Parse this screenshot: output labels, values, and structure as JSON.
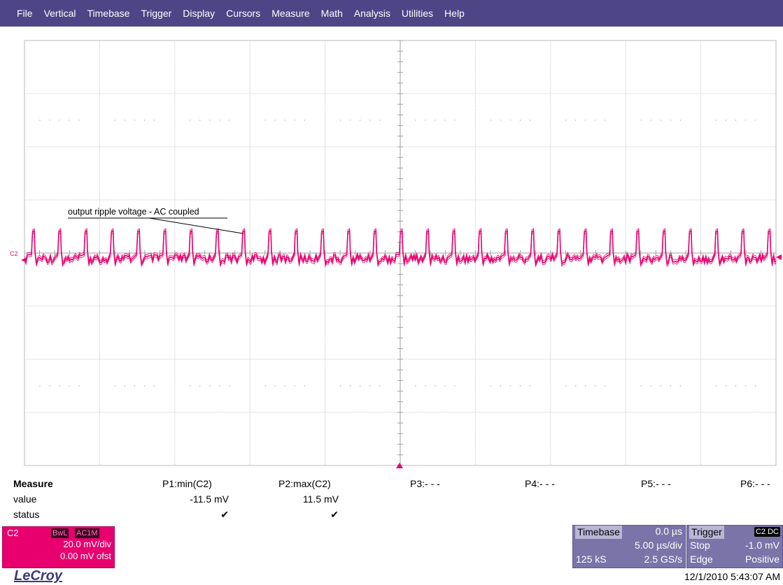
{
  "menu": [
    "File",
    "Vertical",
    "Timebase",
    "Trigger",
    "Display",
    "Cursors",
    "Measure",
    "Math",
    "Analysis",
    "Utilities",
    "Help"
  ],
  "colors": {
    "menubar": "#4d4586",
    "trace": "#e8006e",
    "panel": "#7a74a8"
  },
  "waveform": {
    "channel_marker": "C2",
    "annotation": "output ripple voltage - AC coupled"
  },
  "measure": {
    "title": "Measure",
    "row_labels": {
      "value": "value",
      "status": "status"
    },
    "params": [
      {
        "label": "P1:min(C2)",
        "value": "-11.5 mV",
        "status": "✔"
      },
      {
        "label": "P2:max(C2)",
        "value": "11.5 mV",
        "status": "✔"
      },
      {
        "label": "P3:- - -",
        "value": "",
        "status": ""
      },
      {
        "label": "P4:- - -",
        "value": "",
        "status": ""
      },
      {
        "label": "P5:- - -",
        "value": "",
        "status": ""
      },
      {
        "label": "P6:- - -",
        "value": "",
        "status": ""
      }
    ]
  },
  "channel": {
    "name": "C2",
    "badge_bw": "BwL",
    "badge_coupling": "AC1M",
    "scale": "20.0 mV/div",
    "offset": "0.00 mV ofst"
  },
  "timebase": {
    "title": "Timebase",
    "delay": "0.0 µs",
    "scale": "5.00 µs/div",
    "samples": "125 kS",
    "rate": "2.5 GS/s"
  },
  "trigger": {
    "title": "Trigger",
    "badge": "C2 DC",
    "mode": "Stop",
    "level": "-1.0 mV",
    "type": "Edge",
    "slope": "Positive"
  },
  "brand": "LeCroy",
  "datetime": "12/1/2010 5:43:07 AM"
}
